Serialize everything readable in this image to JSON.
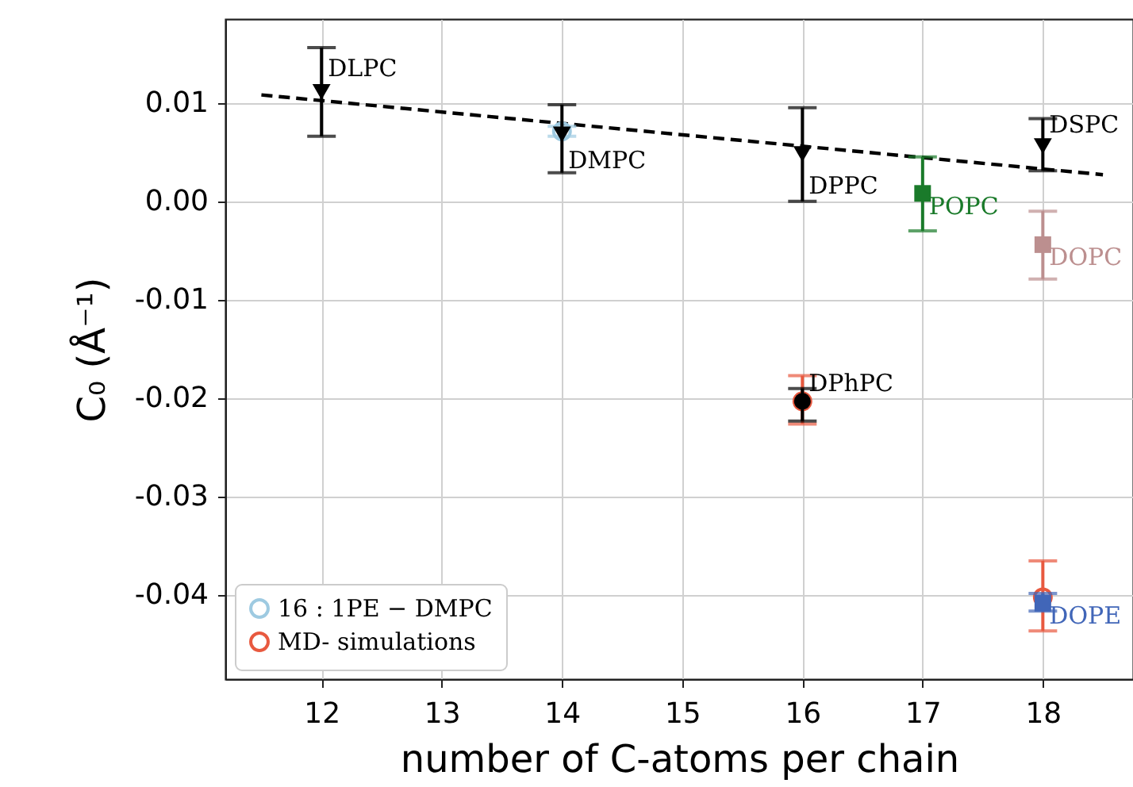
{
  "chart_data": {
    "type": "scatter",
    "xlabel": "number of C-atoms per chain",
    "ylabel": "C₀ (Å⁻¹)",
    "xlim": [
      11.2,
      18.75
    ],
    "ylim": [
      -0.0485,
      0.0185
    ],
    "xticks": [
      12,
      13,
      14,
      15,
      16,
      17,
      18
    ],
    "yticks": [
      {
        "value": 0.01,
        "label": "0.01"
      },
      {
        "value": 0,
        "label": "0.00"
      },
      {
        "value": -0.01,
        "label": "-0.01"
      },
      {
        "value": -0.02,
        "label": "-0.02"
      },
      {
        "value": -0.03,
        "label": "-0.03"
      },
      {
        "value": -0.04,
        "label": "-0.04"
      }
    ],
    "grid": true,
    "legend": "bottom left",
    "series": [
      {
        "type": "line",
        "color": "#000000",
        "line_style": "dashed",
        "x": [
          11.5,
          18.5
        ],
        "values": [
          0.0108,
          0.0027
        ]
      },
      {
        "name": "16 : 1PE − DMPC",
        "color": "#9ecae1",
        "marker": "circle",
        "x": [
          14
        ],
        "values": [
          0.0071
        ],
        "errors": [
          [
            0.0066,
            0.0076
          ]
        ]
      },
      {
        "name": "MD- simulations",
        "color": "#e8593f",
        "marker": "circle",
        "x": [
          16,
          18
        ],
        "values": [
          -0.0203,
          -0.0402
        ],
        "errors": [
          [
            -0.0226,
            -0.0177
          ],
          [
            -0.0436,
            -0.0365
          ]
        ]
      },
      {
        "color": "#000000",
        "marker": "triangle",
        "x": [
          12,
          14,
          16,
          18
        ],
        "values": [
          0.0111,
          0.0068,
          0.0048,
          0.0056
        ],
        "errors": [
          [
            0.0066,
            0.0156
          ],
          [
            0.0029,
            0.0098
          ],
          [
            0.0,
            0.0095
          ],
          [
            0.0031,
            0.0084
          ]
        ]
      },
      {
        "color": "#000000",
        "marker": "circle",
        "x": [
          16
        ],
        "values": [
          -0.0203
        ],
        "errors": [
          [
            -0.0223,
            -0.019
          ]
        ]
      },
      {
        "name": "POPC",
        "color": "#1a7a2a",
        "marker": "square",
        "x": [
          17
        ],
        "values": [
          0.0008
        ],
        "errors": [
          [
            -0.003,
            0.0045
          ]
        ]
      },
      {
        "name": "DOPC",
        "color": "#bc8f8f",
        "marker": "square",
        "x": [
          18
        ],
        "values": [
          -0.0044
        ],
        "errors": [
          [
            -0.0079,
            -0.001
          ]
        ]
      },
      {
        "name": "DOPE",
        "color": "#4166b8",
        "marker": "square",
        "x": [
          18
        ],
        "values": [
          -0.0408
        ],
        "errors": [
          [
            -0.0416,
            -0.0398
          ]
        ]
      }
    ],
    "annotations": [
      {
        "text": "DLPC",
        "x": 12,
        "y": 0.0135
      },
      {
        "text": "DMPC",
        "x": 14,
        "y": 0.0042
      },
      {
        "text": "DPPC",
        "x": 16,
        "y": 0.0016
      },
      {
        "text": "DSPC",
        "x": 18,
        "y": 0.0078
      },
      {
        "text": "DPhPC",
        "x": 16,
        "y": -0.0185
      }
    ]
  }
}
